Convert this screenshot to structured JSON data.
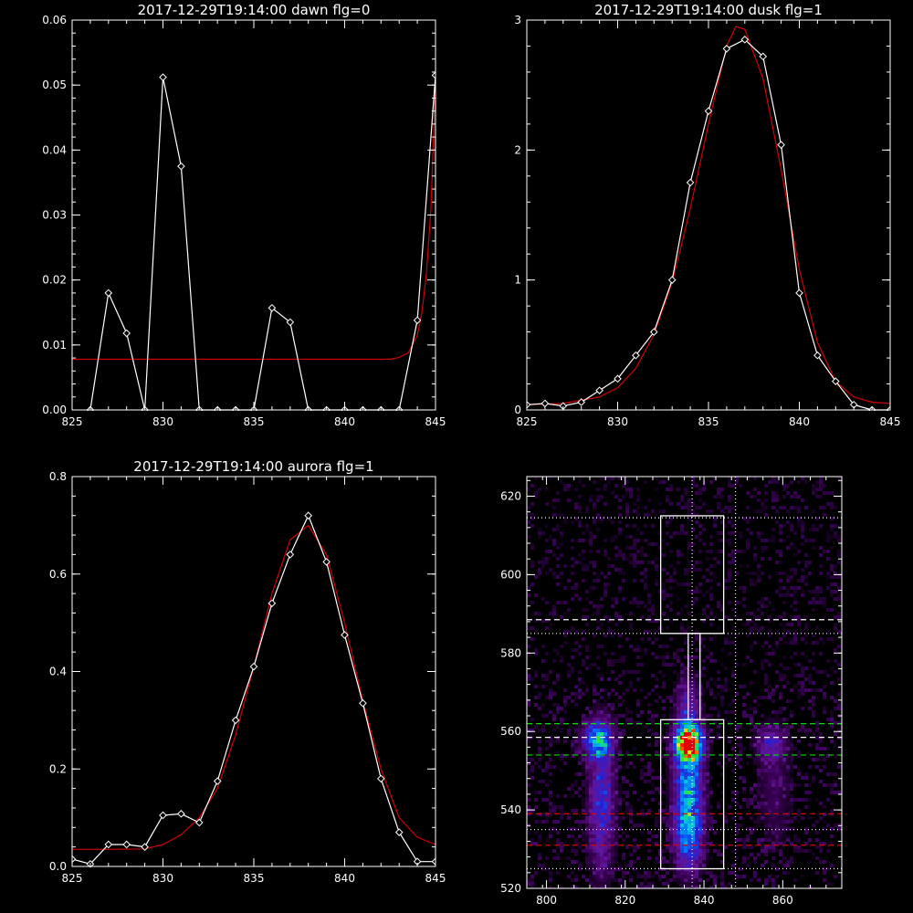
{
  "colors": {
    "background": "#000000",
    "axes": "#ffffff",
    "data_line": "#ffffff",
    "fit_line": "#d40000",
    "green_line": "#00dd00",
    "white_dashed": "#ffffff",
    "red_dashed": "#d40000"
  },
  "chart_data": [
    {
      "type": "line",
      "title": "2017-12-29T19:14:00 dawn flg=0",
      "xlim": [
        825,
        845
      ],
      "ylim": [
        0,
        0.06
      ],
      "xticks": [
        825,
        830,
        835,
        840,
        845
      ],
      "xtick_labels": [
        "825",
        "830",
        "835",
        "840",
        "845"
      ],
      "yticks": [
        0,
        0.01,
        0.02,
        0.03,
        0.04,
        0.05,
        0.06
      ],
      "ytick_labels": [
        "0.00",
        "0.01",
        "0.02",
        "0.03",
        "0.04",
        "0.05",
        "0.06"
      ],
      "series": [
        {
          "marker": "diamond",
          "x": [
            826,
            827,
            828,
            829,
            830,
            831,
            832,
            833,
            834,
            835,
            836,
            837,
            838,
            839,
            840,
            841,
            842,
            843,
            844,
            845
          ],
          "y": [
            0,
            0.018,
            0.0118,
            0,
            0.0512,
            0.0375,
            0,
            0,
            0,
            0,
            0.0157,
            0.0135,
            0,
            0,
            0,
            0,
            0,
            0,
            0.0138,
            0.0515
          ]
        },
        {
          "marker": "none",
          "x": [
            825,
            842.5,
            843,
            843.5,
            844,
            844.25,
            844.5,
            844.75,
            845
          ],
          "y": [
            0.0078,
            0.0078,
            0.0081,
            0.0088,
            0.0115,
            0.015,
            0.021,
            0.031,
            0.051
          ]
        }
      ]
    },
    {
      "type": "line",
      "title": "2017-12-29T19:14:00 dusk flg=1",
      "xlim": [
        825,
        845
      ],
      "ylim": [
        0,
        3
      ],
      "xticks": [
        825,
        830,
        835,
        840,
        845
      ],
      "xtick_labels": [
        "825",
        "830",
        "835",
        "840",
        "845"
      ],
      "yticks": [
        0,
        1,
        2,
        3
      ],
      "ytick_labels": [
        "0",
        "1",
        "2",
        "3"
      ],
      "series": [
        {
          "marker": "diamond",
          "x": [
            825,
            826,
            827,
            828,
            829,
            830,
            831,
            832,
            833,
            834,
            835,
            836,
            837,
            838,
            839,
            840,
            841,
            842,
            843,
            844,
            845
          ],
          "y": [
            0.04,
            0.05,
            0.03,
            0.06,
            0.15,
            0.24,
            0.42,
            0.6,
            1.0,
            1.75,
            2.3,
            2.78,
            2.85,
            2.72,
            2.04,
            0.9,
            0.42,
            0.22,
            0.04,
            0,
            0
          ]
        },
        {
          "marker": "none",
          "x": [
            825,
            827,
            829,
            830,
            831,
            832,
            833,
            834,
            835,
            836,
            836.5,
            837,
            838,
            839,
            840,
            841,
            842,
            843,
            844,
            845
          ],
          "y": [
            0.04,
            0.05,
            0.1,
            0.17,
            0.32,
            0.58,
            0.98,
            1.55,
            2.2,
            2.8,
            2.95,
            2.93,
            2.55,
            1.85,
            1.08,
            0.52,
            0.22,
            0.1,
            0.06,
            0.05
          ]
        }
      ]
    },
    {
      "type": "line",
      "title": "2017-12-29T19:14:00 aurora flg=1",
      "xlim": [
        825,
        845
      ],
      "ylim": [
        0,
        0.8
      ],
      "xticks": [
        825,
        830,
        835,
        840,
        845
      ],
      "xtick_labels": [
        "825",
        "830",
        "835",
        "840",
        "845"
      ],
      "yticks": [
        0,
        0.2,
        0.4,
        0.6,
        0.8
      ],
      "ytick_labels": [
        "0.0",
        "0.2",
        "0.4",
        "0.6",
        "0.8"
      ],
      "series": [
        {
          "marker": "diamond",
          "x": [
            825,
            826,
            827,
            828,
            829,
            830,
            831,
            832,
            833,
            834,
            835,
            836,
            837,
            838,
            839,
            840,
            841,
            842,
            843,
            844,
            845
          ],
          "y": [
            0.015,
            0.005,
            0.045,
            0.045,
            0.04,
            0.105,
            0.108,
            0.09,
            0.175,
            0.3,
            0.41,
            0.54,
            0.64,
            0.72,
            0.625,
            0.475,
            0.335,
            0.18,
            0.07,
            0.01,
            0.01
          ]
        },
        {
          "marker": "none",
          "x": [
            825,
            827,
            829,
            830,
            831,
            832,
            833,
            834,
            835,
            836,
            837,
            838,
            839,
            840,
            841,
            842,
            843,
            844,
            845
          ],
          "y": [
            0.035,
            0.035,
            0.036,
            0.045,
            0.065,
            0.1,
            0.16,
            0.27,
            0.41,
            0.56,
            0.67,
            0.7,
            0.64,
            0.5,
            0.34,
            0.2,
            0.1,
            0.06,
            0.045
          ]
        }
      ]
    },
    {
      "type": "heatmap",
      "title": "",
      "xlim": [
        795,
        875
      ],
      "ylim": [
        520,
        625
      ],
      "xticks": [
        800,
        820,
        840,
        860
      ],
      "xtick_labels": [
        "800",
        "820",
        "840",
        "860"
      ],
      "yticks": [
        520,
        540,
        560,
        580,
        600,
        620
      ],
      "ytick_labels": [
        "520",
        "540",
        "560",
        "580",
        "600",
        "620"
      ],
      "blobs": [
        {
          "x": 813,
          "y": 558,
          "amp": 0.5,
          "sx": 2.5,
          "sy": 3
        },
        {
          "x": 814,
          "y": 542,
          "amp": 0.32,
          "sx": 2.2,
          "sy": 12
        },
        {
          "x": 836,
          "y": 557,
          "amp": 1.0,
          "sx": 2.2,
          "sy": 3
        },
        {
          "x": 836,
          "y": 546,
          "amp": 0.5,
          "sx": 2.4,
          "sy": 10
        },
        {
          "x": 836,
          "y": 533,
          "amp": 0.3,
          "sx": 2.4,
          "sy": 6
        },
        {
          "x": 836,
          "y": 567,
          "amp": 0.2,
          "sx": 2,
          "sy": 5
        },
        {
          "x": 857,
          "y": 557,
          "amp": 0.22,
          "sx": 2.5,
          "sy": 3
        },
        {
          "x": 858,
          "y": 545,
          "amp": 0.1,
          "sx": 3,
          "sy": 10
        }
      ],
      "boxes": [
        {
          "x": [
            829,
            845
          ],
          "y": [
            525,
            563
          ]
        },
        {
          "x": [
            829,
            845
          ],
          "y": [
            585,
            615
          ]
        },
        {
          "x": [
            836,
            839
          ],
          "y": [
            563,
            585
          ]
        }
      ],
      "vlines_dotted": [
        837,
        848
      ],
      "hlines_dotted": [
        614.5,
        585,
        535,
        525
      ],
      "hlines_white_dashed": [
        588.5,
        558.5
      ],
      "hlines_green_dashed": [
        562,
        554
      ],
      "hlines_red_dashed": [
        539,
        531
      ]
    }
  ]
}
